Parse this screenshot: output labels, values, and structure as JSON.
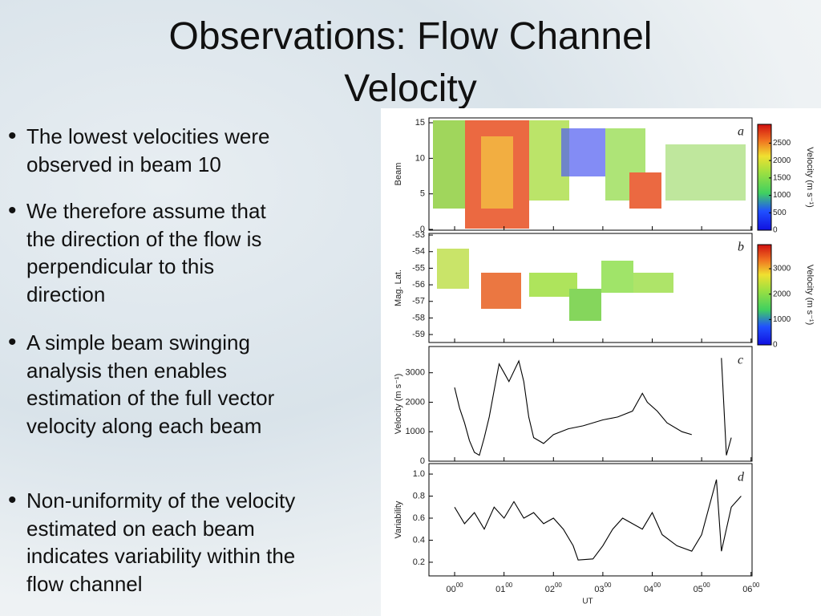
{
  "title": {
    "lines": [
      "Observations: Flow Channel",
      "Velocity"
    ]
  },
  "bullets": [
    "The lowest velocities were observed in beam 10",
    "We therefore assume that the direction of the flow is perpendicular to this direction",
    "A simple beam swinging analysis then enables estimation of the full vector velocity along each beam",
    "Non-uniformity of the velocity estimated on each beam indicates variability within the flow channel"
  ],
  "figure": {
    "x_label": "UT",
    "xlim": [
      -0.52,
      6.02
    ],
    "xticks": [
      {
        "value": 0,
        "hour": "00",
        "min": "00"
      },
      {
        "value": 1,
        "hour": "01",
        "min": "00"
      },
      {
        "value": 2,
        "hour": "02",
        "min": "00"
      },
      {
        "value": 3,
        "hour": "03",
        "min": "00"
      },
      {
        "value": 4,
        "hour": "04",
        "min": "00"
      },
      {
        "value": 5,
        "hour": "05",
        "min": "00"
      },
      {
        "value": 6,
        "hour": "06",
        "min": "00"
      }
    ],
    "panels": [
      {
        "type": "heatmap",
        "letter": "a",
        "y_label": "Beam",
        "ylim": [
          -0.11,
          15.68
        ],
        "yticks": [
          0,
          5,
          10,
          15
        ],
        "colorbar": {
          "label": "Velocity (m s⁻¹)",
          "lim": [
            0,
            3040
          ],
          "ticks": [
            0,
            500,
            1000,
            1500,
            2000,
            2500
          ]
        }
      },
      {
        "type": "heatmap",
        "letter": "b",
        "y_label": "Mag. Lat.",
        "ylim": [
          -59.48,
          -52.9
        ],
        "yticks": [
          -59,
          -58,
          -57,
          -56,
          -55,
          -54,
          -53
        ],
        "colorbar": {
          "label": "Velocity (m s⁻¹)",
          "lim": [
            0,
            3950
          ],
          "ticks": [
            0,
            1000,
            2000,
            3000
          ]
        }
      },
      {
        "type": "line",
        "letter": "c",
        "y_label": "Velocity (m s⁻¹)",
        "ylim": [
          0,
          3890
        ],
        "yticks": [
          0,
          1000,
          2000,
          3000
        ],
        "x": [
          0.0,
          0.1,
          0.2,
          0.3,
          0.4,
          0.5,
          0.6,
          0.7,
          0.8,
          0.9,
          1.0,
          1.1,
          1.3,
          1.4,
          1.5,
          1.6,
          1.8,
          2.0,
          2.3,
          2.6,
          3.0,
          3.3,
          3.6,
          3.8,
          3.9,
          4.1,
          4.3,
          4.6,
          4.8,
          5.0,
          5.4,
          5.5,
          5.6
        ],
        "values": [
          2500,
          1800,
          1300,
          700,
          300,
          200,
          800,
          1500,
          2400,
          3300,
          3000,
          2700,
          3400,
          2700,
          1500,
          800,
          600,
          900,
          1100,
          1200,
          1400,
          1500,
          1700,
          2300,
          2000,
          1700,
          1300,
          1000,
          900,
          null,
          3500,
          200,
          800
        ]
      },
      {
        "type": "line",
        "letter": "d",
        "y_label": "Variability",
        "ylim": [
          0.076,
          1.095
        ],
        "yticks": [
          {
            "value": 0.2,
            "label": "0.2"
          },
          {
            "value": 0.4,
            "label": "0.4"
          },
          {
            "value": 0.6,
            "label": "0.6"
          },
          {
            "value": 0.8,
            "label": "0.8"
          },
          {
            "value": 1.0,
            "label": "1.0"
          }
        ],
        "x": [
          0.0,
          0.2,
          0.4,
          0.6,
          0.8,
          1.0,
          1.2,
          1.4,
          1.6,
          1.8,
          2.0,
          2.2,
          2.4,
          2.5,
          2.8,
          3.0,
          3.2,
          3.4,
          3.6,
          3.8,
          4.0,
          4.2,
          4.5,
          4.8,
          5.0,
          5.3,
          5.4,
          5.6,
          5.8
        ],
        "values": [
          0.7,
          0.55,
          0.65,
          0.5,
          0.7,
          0.6,
          0.75,
          0.6,
          0.65,
          0.55,
          0.6,
          0.5,
          0.35,
          0.22,
          0.23,
          0.35,
          0.5,
          0.6,
          0.55,
          0.5,
          0.65,
          0.45,
          0.35,
          0.3,
          0.45,
          0.95,
          0.3,
          0.7,
          0.8
        ]
      }
    ]
  }
}
